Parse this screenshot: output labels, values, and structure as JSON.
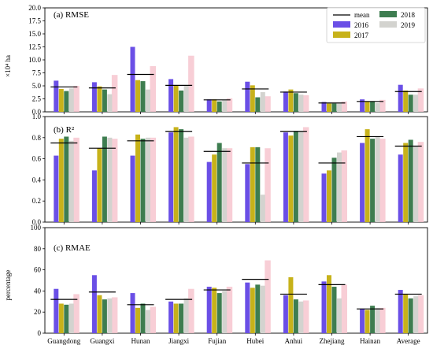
{
  "legend": {
    "mean_label": "mean",
    "items": [
      {
        "label": "2016",
        "color": "#6a4fe6"
      },
      {
        "label": "2017",
        "color": "#c7b21a"
      },
      {
        "label": "2018",
        "color": "#3e7d50"
      },
      {
        "label": "2019",
        "color": "#d3d3cf"
      }
    ],
    "mean_color": "#000000",
    "highlight_colors": [
      "#f7c6cf",
      "#f2b7c2"
    ]
  },
  "chart_data": [
    {
      "type": "bar",
      "title": "(a) RMSE",
      "ylabel": "×10⁴ ha",
      "ylim": [
        0,
        20
      ],
      "yticks": [
        "0.0",
        "2.5",
        "5.0",
        "7.5",
        "10.0",
        "12.5",
        "15.0",
        "17.5",
        "20.0"
      ],
      "categories": [
        "Guangdong",
        "Guangxi",
        "Hunan",
        "Jiangxi",
        "Fujian",
        "Hubei",
        "Anhui",
        "Zhejiang",
        "Hainan",
        "Average"
      ],
      "series": [
        {
          "name": "2016",
          "values": [
            6.0,
            5.7,
            12.5,
            6.3,
            2.4,
            5.8,
            3.9,
            1.9,
            2.4,
            5.2
          ]
        },
        {
          "name": "2017",
          "values": [
            4.4,
            4.9,
            6.1,
            5.1,
            2.4,
            5.1,
            4.3,
            1.6,
            2.0,
            4.1
          ]
        },
        {
          "name": "2018",
          "values": [
            4.0,
            4.3,
            5.9,
            4.1,
            2.0,
            2.8,
            3.6,
            1.6,
            2.0,
            3.3
          ]
        },
        {
          "name": "2019",
          "values": [
            4.5,
            3.4,
            4.3,
            5.0,
            2.2,
            3.8,
            3.3,
            1.6,
            1.7,
            3.3
          ]
        }
      ],
      "mean": [
        4.8,
        4.6,
        7.2,
        5.1,
        2.3,
        4.4,
        3.8,
        1.7,
        2.0,
        3.9
      ],
      "highlight": [
        5.0,
        7.1,
        8.8,
        10.8,
        2.6,
        3.0,
        3.2,
        2.0,
        2.3,
        4.5
      ]
    },
    {
      "type": "bar",
      "title": "(b) R²",
      "ylabel": "",
      "ylim": [
        0,
        1.0
      ],
      "yticks": [
        "0.0",
        "0.2",
        "0.4",
        "0.6",
        "0.8",
        "1.0"
      ],
      "categories": [
        "Guangdong",
        "Guangxi",
        "Hunan",
        "Jiangxi",
        "Fujian",
        "Hubei",
        "Anhui",
        "Zhejiang",
        "Hainan",
        "Average"
      ],
      "series": [
        {
          "name": "2016",
          "values": [
            0.63,
            0.49,
            0.63,
            0.85,
            0.57,
            0.55,
            0.85,
            0.46,
            0.75,
            0.64
          ]
        },
        {
          "name": "2017",
          "values": [
            0.79,
            0.7,
            0.83,
            0.9,
            0.64,
            0.71,
            0.82,
            0.49,
            0.88,
            0.75
          ]
        },
        {
          "name": "2018",
          "values": [
            0.81,
            0.81,
            0.79,
            0.88,
            0.75,
            0.71,
            0.86,
            0.61,
            0.79,
            0.78
          ]
        },
        {
          "name": "2019",
          "values": [
            0.77,
            0.8,
            0.8,
            0.8,
            0.7,
            0.26,
            0.86,
            0.66,
            0.81,
            0.72
          ]
        }
      ],
      "mean": [
        0.75,
        0.7,
        0.77,
        0.86,
        0.67,
        0.56,
        0.86,
        0.56,
        0.81,
        0.72
      ],
      "highlight": [
        0.8,
        0.79,
        0.8,
        0.81,
        0.7,
        0.7,
        0.9,
        0.68,
        0.79,
        0.76
      ]
    },
    {
      "type": "bar",
      "title": "(c) RMAE",
      "ylabel": "percentage",
      "ylim": [
        0,
        100
      ],
      "yticks": [
        "0",
        "20",
        "40",
        "60",
        "80",
        "100"
      ],
      "categories": [
        "Guangdong",
        "Guangxi",
        "Hunan",
        "Jiangxi",
        "Fujian",
        "Hubei",
        "Anhui",
        "Zhejiang",
        "Hainan",
        "Average"
      ],
      "series": [
        {
          "name": "2016",
          "values": [
            42,
            55,
            38,
            30,
            44,
            48,
            36,
            49,
            23,
            41
          ]
        },
        {
          "name": "2017",
          "values": [
            28,
            36,
            24,
            28,
            43,
            43,
            53,
            55,
            22,
            37
          ]
        },
        {
          "name": "2018",
          "values": [
            27,
            32,
            28,
            28,
            38,
            46,
            32,
            44,
            26,
            33
          ]
        },
        {
          "name": "2019",
          "values": [
            28,
            33,
            22,
            33,
            40,
            45,
            30,
            33,
            24,
            35
          ]
        }
      ],
      "mean": [
        32,
        39,
        27,
        32,
        41,
        51,
        37,
        46,
        23,
        37
      ],
      "highlight": [
        37,
        34,
        25,
        42,
        44,
        69,
        31,
        46,
        24,
        36
      ]
    }
  ]
}
